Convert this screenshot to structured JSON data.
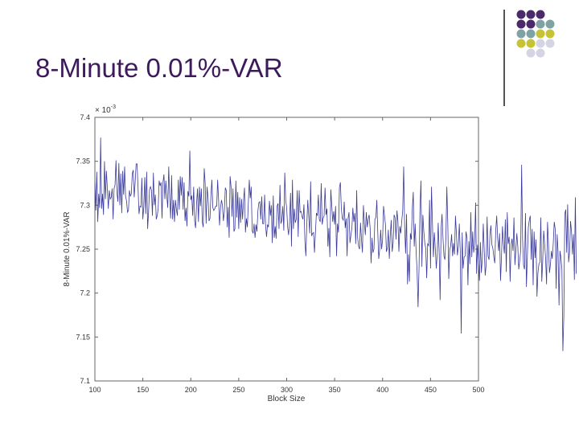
{
  "slide": {
    "title": "8-Minute 0.01%-VAR"
  },
  "decoration": {
    "dot_colors": {
      "purple": "#4b2a6b",
      "teal": "#7fa3a5",
      "olive": "#c6c436",
      "lavender": "#d4d4e4"
    },
    "dot_grid": [
      [
        "purple",
        "purple",
        "purple",
        null
      ],
      [
        "purple",
        "purple",
        "teal",
        "teal"
      ],
      [
        "teal",
        "teal",
        "olive",
        "olive"
      ],
      [
        "olive",
        "olive",
        "lavender",
        "lavender"
      ],
      [
        null,
        "lavender",
        "lavender",
        null
      ]
    ]
  },
  "chart_data": {
    "type": "line",
    "title": "",
    "xlabel": "Block Size",
    "ylabel": "8-Minute 0.01%-VAR",
    "y_exponent_label": "× 10",
    "y_exponent_power": "-3",
    "xlim": [
      100,
      500
    ],
    "ylim": [
      7.1,
      7.4
    ],
    "x_ticks": [
      "100",
      "150",
      "200",
      "250",
      "300",
      "350",
      "400",
      "450",
      "500"
    ],
    "y_ticks": [
      "7.1",
      "7.15",
      "7.2",
      "7.25",
      "7.3",
      "7.35",
      "7.4"
    ],
    "grid": false,
    "line_color": "#3a3a9a",
    "series": [
      {
        "x_start": 100,
        "x_step": 1,
        "values": [
          7.326,
          7.294,
          7.338,
          7.281,
          7.313,
          7.297,
          7.377,
          7.296,
          7.313,
          7.289,
          7.35,
          7.307,
          7.339,
          7.319,
          7.296,
          7.317,
          7.307,
          7.309,
          7.319,
          7.284,
          7.319,
          7.323,
          7.351,
          7.314,
          7.304,
          7.348,
          7.3,
          7.336,
          7.291,
          7.339,
          7.312,
          7.344,
          7.31,
          7.305,
          7.292,
          7.294,
          7.317,
          7.31,
          7.313,
          7.336,
          7.34,
          7.309,
          7.326,
          7.347,
          7.347,
          7.32,
          7.29,
          7.299,
          7.298,
          7.331,
          7.284,
          7.298,
          7.332,
          7.29,
          7.338,
          7.273,
          7.293,
          7.318,
          7.321,
          7.317,
          7.288,
          7.337,
          7.3,
          7.312,
          7.284,
          7.288,
          7.296,
          7.328,
          7.322,
          7.326,
          7.285,
          7.326,
          7.335,
          7.307,
          7.328,
          7.31,
          7.297,
          7.344,
          7.309,
          7.285,
          7.334,
          7.284,
          7.306,
          7.281,
          7.306,
          7.295,
          7.288,
          7.329,
          7.295,
          7.333,
          7.311,
          7.332,
          7.295,
          7.326,
          7.282,
          7.297,
          7.276,
          7.316,
          7.31,
          7.362,
          7.306,
          7.311,
          7.288,
          7.321,
          7.282,
          7.274,
          7.301,
          7.319,
          7.281,
          7.321,
          7.299,
          7.319,
          7.281,
          7.275,
          7.342,
          7.325,
          7.279,
          7.321,
          7.308,
          7.282,
          7.285,
          7.311,
          7.329,
          7.297,
          7.294,
          7.296,
          7.299,
          7.299,
          7.329,
          7.306,
          7.277,
          7.297,
          7.306,
          7.3,
          7.282,
          7.293,
          7.32,
          7.317,
          7.275,
          7.298,
          7.263,
          7.333,
          7.321,
          7.287,
          7.319,
          7.27,
          7.273,
          7.328,
          7.286,
          7.315,
          7.273,
          7.309,
          7.28,
          7.307,
          7.284,
          7.305,
          7.32,
          7.269,
          7.285,
          7.275,
          7.302,
          7.329,
          7.308,
          7.321,
          7.271,
          7.268,
          7.279,
          7.263,
          7.278,
          7.27,
          7.294,
          7.303,
          7.304,
          7.284,
          7.31,
          7.279,
          7.279,
          7.312,
          7.277,
          7.264,
          7.278,
          7.275,
          7.305,
          7.288,
          7.3,
          7.257,
          7.311,
          7.263,
          7.276,
          7.262,
          7.299,
          7.302,
          7.273,
          7.323,
          7.279,
          7.283,
          7.299,
          7.271,
          7.337,
          7.305,
          7.297,
          7.275,
          7.266,
          7.281,
          7.314,
          7.253,
          7.329,
          7.273,
          7.296,
          7.28,
          7.284,
          7.317,
          7.264,
          7.317,
          7.292,
          7.293,
          7.287,
          7.284,
          7.301,
          7.259,
          7.242,
          7.279,
          7.306,
          7.287,
          7.268,
          7.327,
          7.265,
          7.268,
          7.269,
          7.246,
          7.269,
          7.291,
          7.288,
          7.312,
          7.284,
          7.281,
          7.325,
          7.278,
          7.285,
          7.288,
          7.32,
          7.289,
          7.296,
          7.253,
          7.274,
          7.241,
          7.318,
          7.3,
          7.281,
          7.293,
          7.278,
          7.299,
          7.242,
          7.279,
          7.269,
          7.32,
          7.326,
          7.296,
          7.285,
          7.283,
          7.304,
          7.274,
          7.285,
          7.242,
          7.285,
          7.292,
          7.257,
          7.266,
          7.274,
          7.297,
          7.281,
          7.291,
          7.256,
          7.317,
          7.263,
          7.253,
          7.25,
          7.28,
          7.261,
          7.246,
          7.3,
          7.28,
          7.266,
          7.292,
          7.275,
          7.284,
          7.289,
          7.274,
          7.234,
          7.263,
          7.246,
          7.25,
          7.284,
          7.286,
          7.306,
          7.269,
          7.239,
          7.25,
          7.272,
          7.25,
          7.261,
          7.299,
          7.288,
          7.278,
          7.247,
          7.251,
          7.272,
          7.239,
          7.265,
          7.283,
          7.247,
          7.257,
          7.289,
          7.286,
          7.261,
          7.294,
          7.282,
          7.247,
          7.276,
          7.268,
          7.282,
          7.294,
          7.344,
          7.276,
          7.245,
          7.29,
          7.21,
          7.244,
          7.213,
          7.268,
          7.261,
          7.296,
          7.315,
          7.253,
          7.279,
          7.246,
          7.225,
          7.184,
          7.228,
          7.295,
          7.328,
          7.23,
          7.289,
          7.27,
          7.257,
          7.251,
          7.217,
          7.256,
          7.254,
          7.306,
          7.228,
          7.321,
          7.279,
          7.241,
          7.269,
          7.25,
          7.228,
          7.245,
          7.28,
          7.246,
          7.192,
          7.273,
          7.29,
          7.262,
          7.242,
          7.238,
          7.262,
          7.321,
          7.279,
          7.216,
          7.249,
          7.254,
          7.267,
          7.242,
          7.257,
          7.244,
          7.288,
          7.268,
          7.243,
          7.253,
          7.279,
          7.248,
          7.154,
          7.269,
          7.228,
          7.241,
          7.242,
          7.27,
          7.263,
          7.209,
          7.259,
          7.233,
          7.292,
          7.241,
          7.27,
          7.246,
          7.257,
          7.303,
          7.222,
          7.255,
          7.236,
          7.214,
          7.258,
          7.223,
          7.239,
          7.279,
          7.249,
          7.22,
          7.232,
          7.287,
          7.242,
          7.238,
          7.267,
          7.277,
          7.255,
          7.251,
          7.241,
          7.234,
          7.271,
          7.288,
          7.262,
          7.248,
          7.268,
          7.214,
          7.242,
          7.276,
          7.256,
          7.245,
          7.284,
          7.224,
          7.292,
          7.256,
          7.264,
          7.213,
          7.255,
          7.262,
          7.248,
          7.286,
          7.232,
          7.249,
          7.268,
          7.253,
          7.227,
          7.237,
          7.248,
          7.346,
          7.261,
          7.232,
          7.227,
          7.291,
          7.207,
          7.243,
          7.275,
          7.283,
          7.288,
          7.238,
          7.273,
          7.209,
          7.27,
          7.24,
          7.261,
          7.196,
          7.223,
          7.233,
          7.235,
          7.286,
          7.213,
          7.237,
          7.271,
          7.256,
          7.239,
          7.21,
          7.281,
          7.256,
          7.223,
          7.232,
          7.248,
          7.239,
          7.257,
          7.281,
          7.273,
          7.205,
          7.267,
          7.247,
          7.186,
          7.248,
          7.24,
          7.227,
          7.134,
          7.174,
          7.29,
          7.295,
          7.246,
          7.301,
          7.235,
          7.247,
          7.282,
          7.27,
          7.244,
          7.267,
          7.215,
          7.309,
          7.222
        ]
      }
    ]
  }
}
